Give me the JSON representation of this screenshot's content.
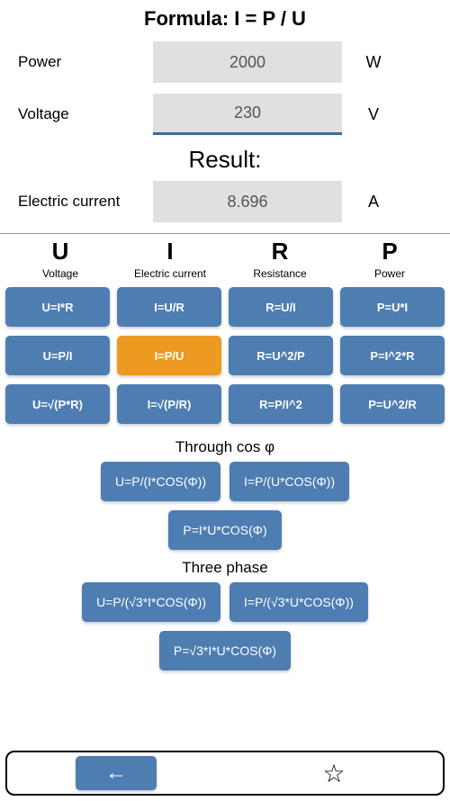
{
  "colors": {
    "button_bg": "#4e7db2",
    "button_selected_bg": "#ec9a20",
    "button_text": "#ffffff",
    "input_bg": "#e0e0e0",
    "active_underline": "#3c6aa0",
    "page_bg": "#ffffff"
  },
  "formula_title": "Formula: I = P / U",
  "inputs": [
    {
      "label": "Power",
      "value": "2000",
      "unit": "W",
      "active": false
    },
    {
      "label": "Voltage",
      "value": "230",
      "unit": "V",
      "active": true
    }
  ],
  "result_label": "Result:",
  "result": {
    "label": "Electric current",
    "value": "8.696",
    "unit": "A"
  },
  "columns": [
    {
      "symbol": "U",
      "desc": "Voltage",
      "formulas": [
        "U=I*R",
        "U=P/I",
        "U=√(P*R)"
      ]
    },
    {
      "symbol": "I",
      "desc": "Electric current",
      "formulas": [
        "I=U/R",
        "I=P/U",
        "I=√(P/R)"
      ],
      "selected_index": 1
    },
    {
      "symbol": "R",
      "desc": "Resistance",
      "formulas": [
        "R=U/I",
        "R=U^2/P",
        "R=P/I^2"
      ]
    },
    {
      "symbol": "P",
      "desc": "Power",
      "formulas": [
        "P=U*I",
        "P=I^2*R",
        "P=U^2/R"
      ]
    }
  ],
  "through_cos_label": "Through cos φ",
  "through_cos_row1": [
    "U=P/(I*COS(Φ))",
    "I=P/(U*COS(Φ))"
  ],
  "through_cos_row2": [
    "P=I*U*COS(Φ)"
  ],
  "three_phase_label": "Three phase",
  "three_phase_row1": [
    "U=P/(√3*I*COS(Φ))",
    "I=P/(√3*U*COS(Φ))"
  ],
  "three_phase_row2": [
    "P=√3*I*U*COS(Φ)"
  ],
  "nav": {
    "back": "←",
    "star": "☆"
  }
}
